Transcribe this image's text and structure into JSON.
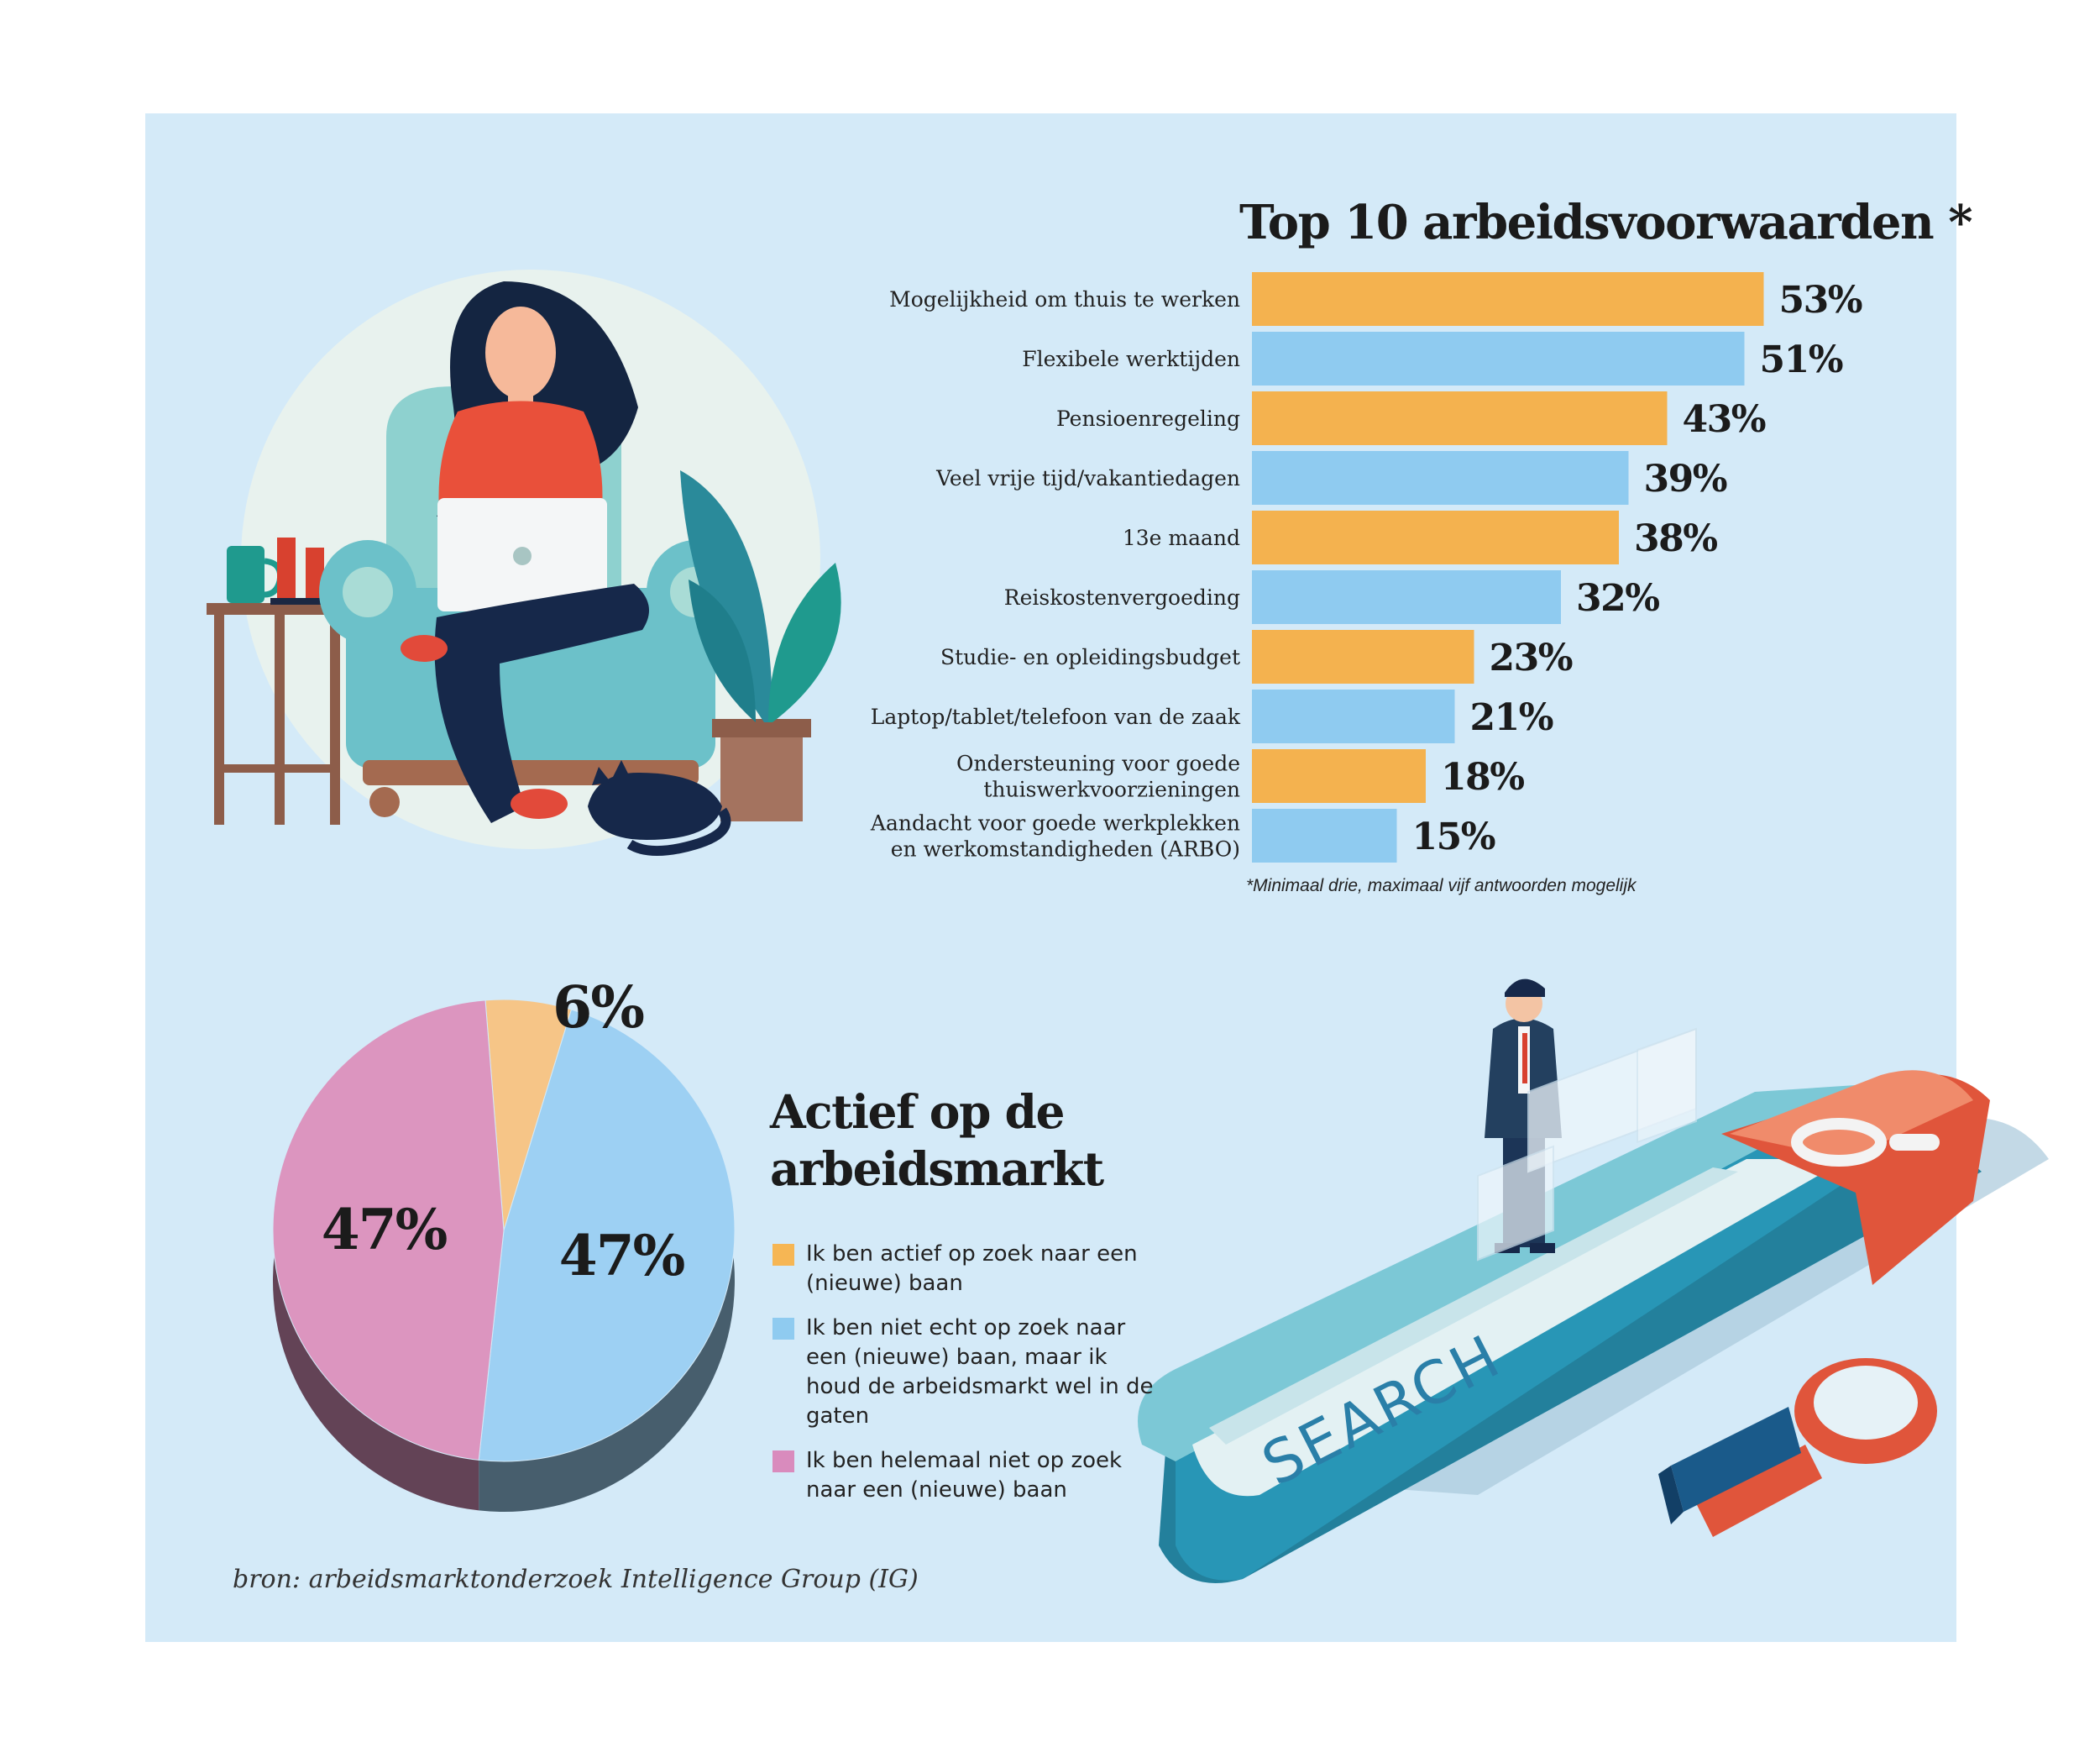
{
  "colors": {
    "background": "#d4eaf8",
    "orange": "#f4b24f",
    "light_blue": "#8fcbf0",
    "pie_orange": "#f6c587",
    "pie_blue": "#9dd0f3",
    "pie_pink": "#dc95bf"
  },
  "bar_section": {
    "title": "Top 10 arbeidsvoorwaarden *",
    "footnote": "*Minimaal drie, maximaal vijf antwoorden mogelijk"
  },
  "pie_section": {
    "title_line1": "Actief op de",
    "title_line2": "arbeidsmarkt",
    "small_slice_label": "6%",
    "legend": [
      {
        "text": "Ik ben actief op zoek naar een (nieuwe) baan",
        "color": "#f6b654"
      },
      {
        "text": "Ik ben niet echt op zoek naar een (nieuwe) baan, maar ik houd de arbeidsmarkt wel in de gaten",
        "color": "#8fcbf0"
      },
      {
        "text": "Ik ben helemaal niet op zoek naar een (nieuwe) baan",
        "color": "#d98bbd"
      }
    ]
  },
  "illustrations": {
    "top_left": "woman-on-armchair-with-laptop-illustration",
    "bottom_right": "businessman-with-search-bar-illustration",
    "search_text": "SEARCH"
  },
  "source": "bron: arbeidsmarktonderzoek Intelligence Group (IG)",
  "chart_data": [
    {
      "type": "bar",
      "orientation": "horizontal",
      "title": "Top 10 arbeidsvoorwaarden *",
      "categories": [
        "Mogelijkheid om thuis te werken",
        "Flexibele werktijden",
        "Pensioenregeling",
        "Veel vrije tijd/vakantiedagen",
        "13e maand",
        "Reiskostenvergoeding",
        "Studie- en opleidingsbudget",
        "Laptop/tablet/telefoon van de zaak",
        "Ondersteuning voor goede thuiswerkvoorzieningen",
        "Aandacht voor goede werkplekken en werkomstandigheden (ARBO)"
      ],
      "category_lines": [
        [
          "Mogelijkheid om thuis te werken"
        ],
        [
          "Flexibele werktijden"
        ],
        [
          "Pensioenregeling"
        ],
        [
          "Veel vrije tijd/vakantiedagen"
        ],
        [
          "13e maand"
        ],
        [
          "Reiskostenvergoeding"
        ],
        [
          "Studie- en opleidingsbudget"
        ],
        [
          "Laptop/tablet/telefoon van de zaak"
        ],
        [
          "Ondersteuning voor goede",
          "thuiswerkvoorzieningen"
        ],
        [
          "Aandacht voor goede werkplekken",
          "en werkomstandigheden (ARBO)"
        ]
      ],
      "values": [
        53,
        51,
        43,
        39,
        38,
        32,
        23,
        21,
        18,
        15
      ],
      "labels": [
        "53%",
        "51%",
        "43%",
        "39%",
        "38%",
        "32%",
        "23%",
        "21%",
        "18%",
        "15%"
      ],
      "unit": "%",
      "bar_colors": [
        "#f4b24f",
        "#8fcbf0",
        "#f4b24f",
        "#8fcbf0",
        "#f4b24f",
        "#8fcbf0",
        "#f4b24f",
        "#8fcbf0",
        "#f4b24f",
        "#8fcbf0"
      ],
      "footnote": "*Minimaal drie, maximaal vijf antwoorden mogelijk",
      "grid": false
    },
    {
      "type": "pie",
      "title": "Actief op de arbeidsmarkt",
      "slices": [
        {
          "name": "Ik ben actief op zoek naar een (nieuwe) baan",
          "value": 6,
          "label": "6%",
          "color": "#f6c587"
        },
        {
          "name": "Ik ben niet echt op zoek naar een (nieuwe) baan, maar ik houd de arbeidsmarkt wel in de gaten",
          "value": 47,
          "label": "47%",
          "color": "#9dd0f3"
        },
        {
          "name": "Ik ben helemaal niet op zoek naar een (nieuwe) baan",
          "value": 47,
          "label": "47%",
          "color": "#dc95bf"
        }
      ],
      "legend_position": "right"
    }
  ]
}
